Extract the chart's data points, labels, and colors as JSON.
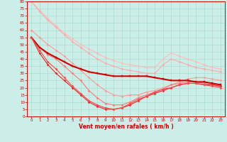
{
  "xlabel": "Vent moyen/en rafales ( km/h )",
  "bg_color": "#cceee8",
  "grid_color": "#aaddcc",
  "xlim": [
    -0.5,
    23.5
  ],
  "ylim": [
    0,
    80
  ],
  "yticks": [
    0,
    5,
    10,
    15,
    20,
    25,
    30,
    35,
    40,
    45,
    50,
    55,
    60,
    65,
    70,
    75,
    80
  ],
  "xticks": [
    0,
    1,
    2,
    3,
    4,
    5,
    6,
    7,
    8,
    9,
    10,
    11,
    12,
    13,
    14,
    15,
    16,
    17,
    18,
    19,
    20,
    21,
    22,
    23
  ],
  "lines": [
    {
      "color": "#ffbbbb",
      "lw": 0.8,
      "marker": "D",
      "ms": 1.5,
      "y": [
        80,
        74,
        68,
        63,
        58,
        54,
        50,
        47,
        44,
        41,
        39,
        37,
        36,
        35,
        34,
        34,
        40,
        44,
        42,
        40,
        38,
        36,
        34,
        33
      ]
    },
    {
      "color": "#ffaaaa",
      "lw": 0.8,
      "marker": "D",
      "ms": 1.5,
      "y": [
        80,
        73,
        67,
        62,
        57,
        52,
        48,
        44,
        40,
        37,
        35,
        33,
        32,
        31,
        30,
        30,
        36,
        40,
        38,
        36,
        34,
        33,
        32,
        31
      ]
    },
    {
      "color": "#ff9999",
      "lw": 0.8,
      "marker": "D",
      "ms": 1.5,
      "y": [
        60,
        55,
        50,
        46,
        42,
        37,
        32,
        27,
        22,
        18,
        15,
        14,
        15,
        15,
        17,
        18,
        20,
        22,
        24,
        26,
        27,
        27,
        26,
        25
      ]
    },
    {
      "color": "#ff7777",
      "lw": 0.8,
      "marker": "D",
      "ms": 1.5,
      "y": [
        55,
        48,
        43,
        40,
        35,
        30,
        25,
        18,
        13,
        9,
        8,
        8,
        10,
        13,
        15,
        17,
        19,
        22,
        23,
        24,
        24,
        23,
        22,
        21
      ]
    },
    {
      "color": "#cc0000",
      "lw": 1.5,
      "marker": "s",
      "ms": 1.8,
      "y": [
        55,
        48,
        44,
        41,
        38,
        35,
        33,
        31,
        30,
        29,
        28,
        28,
        28,
        28,
        28,
        27,
        26,
        25,
        25,
        25,
        24,
        24,
        23,
        22
      ]
    },
    {
      "color": "#ee2222",
      "lw": 0.8,
      "marker": "D",
      "ms": 1.5,
      "y": [
        55,
        44,
        36,
        30,
        25,
        20,
        15,
        10,
        7,
        5,
        5,
        6,
        8,
        11,
        14,
        16,
        18,
        20,
        22,
        23,
        23,
        22,
        22,
        21
      ]
    },
    {
      "color": "#ff4444",
      "lw": 0.8,
      "marker": "D",
      "ms": 1.5,
      "y": [
        55,
        46,
        38,
        33,
        27,
        21,
        16,
        11,
        8,
        6,
        5,
        6,
        9,
        12,
        14,
        17,
        19,
        20,
        22,
        23,
        23,
        22,
        21,
        20
      ]
    }
  ]
}
